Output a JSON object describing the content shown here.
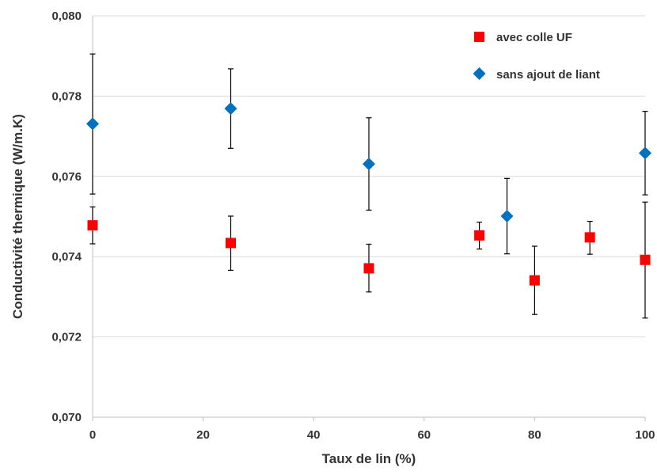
{
  "chart_data": {
    "type": "scatter",
    "xlabel": "Taux de lin (%)",
    "ylabel": "Conductivité thermique (W/m.K)",
    "xlim": [
      0,
      100
    ],
    "ylim": [
      0.07,
      0.08
    ],
    "x_ticks": [
      0,
      20,
      40,
      60,
      80,
      100
    ],
    "y_ticks": [
      0.07,
      0.072,
      0.074,
      0.076,
      0.078,
      0.08
    ],
    "x_tick_labels": [
      "0",
      "20",
      "40",
      "60",
      "80",
      "100"
    ],
    "y_tick_labels": [
      "0,070",
      "0,072",
      "0,074",
      "0,076",
      "0,078",
      "0,080"
    ],
    "grid": "horizontal",
    "legend_position": "top-right",
    "series": [
      {
        "name": "avec colle UF",
        "marker": "square",
        "color": "#ff0000",
        "points": [
          {
            "x": 0,
            "y": 0.07478,
            "err_low": 0.07432,
            "err_high": 0.07524
          },
          {
            "x": 25,
            "y": 0.07434,
            "err_low": 0.07366,
            "err_high": 0.07501
          },
          {
            "x": 50,
            "y": 0.07371,
            "err_low": 0.07312,
            "err_high": 0.07431
          },
          {
            "x": 70,
            "y": 0.07453,
            "err_low": 0.07419,
            "err_high": 0.07486
          },
          {
            "x": 80,
            "y": 0.07341,
            "err_low": 0.07256,
            "err_high": 0.07426
          },
          {
            "x": 90,
            "y": 0.07448,
            "err_low": 0.07406,
            "err_high": 0.07488
          },
          {
            "x": 100,
            "y": 0.07392,
            "err_low": 0.07247,
            "err_high": 0.07536
          }
        ]
      },
      {
        "name": "sans ajout de liant",
        "marker": "diamond",
        "color": "#0070c0",
        "points": [
          {
            "x": 0,
            "y": 0.07731,
            "err_low": 0.07556,
            "err_high": 0.07905
          },
          {
            "x": 25,
            "y": 0.07769,
            "err_low": 0.0767,
            "err_high": 0.07868
          },
          {
            "x": 50,
            "y": 0.07631,
            "err_low": 0.07516,
            "err_high": 0.07746
          },
          {
            "x": 75,
            "y": 0.07501,
            "err_low": 0.07407,
            "err_high": 0.07595
          },
          {
            "x": 100,
            "y": 0.07658,
            "err_low": 0.07554,
            "err_high": 0.07762
          }
        ]
      }
    ]
  }
}
